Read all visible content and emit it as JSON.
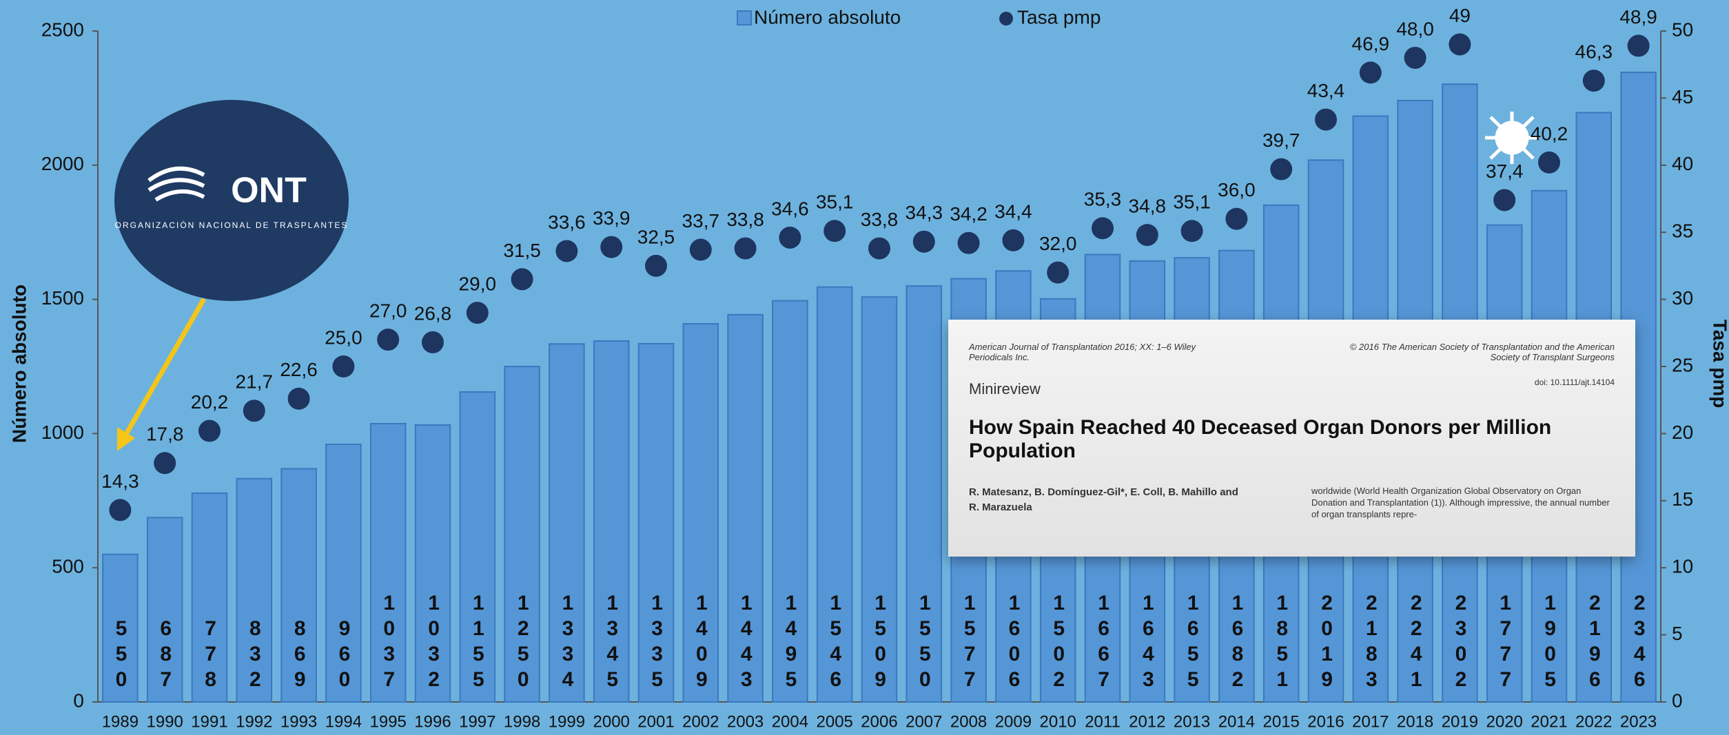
{
  "chart_data": {
    "type": "bar_scatter",
    "categories": [
      "1989",
      "1990",
      "1991",
      "1992",
      "1993",
      "1994",
      "1995",
      "1996",
      "1997",
      "1998",
      "1999",
      "2000",
      "2001",
      "2002",
      "2003",
      "2004",
      "2005",
      "2006",
      "2007",
      "2008",
      "2009",
      "2010",
      "2011",
      "2012",
      "2013",
      "2014",
      "2015",
      "2016",
      "2017",
      "2018",
      "2019",
      "2020",
      "2021",
      "2022",
      "2023"
    ],
    "series": [
      {
        "name": "Número absoluto",
        "color": "#5596d6",
        "values": [
          550,
          687,
          778,
          832,
          869,
          960,
          1037,
          1032,
          1155,
          1250,
          1334,
          1345,
          1335,
          1409,
          1443,
          1495,
          1546,
          1509,
          1550,
          1577,
          1606,
          1502,
          1667,
          1643,
          1655,
          1682,
          1851,
          2019,
          2183,
          2241,
          2302,
          1777,
          1905,
          2196,
          2346
        ]
      },
      {
        "name": "Tasa pmp",
        "color": "#1e3560",
        "axis": "y2",
        "values": [
          14.3,
          17.8,
          20.2,
          21.7,
          22.6,
          25.0,
          27.0,
          26.8,
          29.0,
          31.5,
          33.6,
          33.9,
          32.5,
          33.7,
          33.8,
          34.6,
          35.1,
          33.8,
          34.3,
          34.2,
          34.4,
          32.0,
          35.3,
          34.8,
          35.1,
          36.0,
          39.7,
          43.4,
          46.9,
          48.0,
          49,
          37.4,
          40.2,
          46.3,
          48.9
        ],
        "value_labels": [
          "14,3",
          "17,8",
          "20,2",
          "21,7",
          "22,6",
          "25,0",
          "27,0",
          "26,8",
          "29,0",
          "31,5",
          "33,6",
          "33,9",
          "32,5",
          "33,7",
          "33,8",
          "34,6",
          "35,1",
          "33,8",
          "34,3",
          "34,2",
          "34,4",
          "32,0",
          "35,3",
          "34,8",
          "35,1",
          "36,0",
          "39,7",
          "43,4",
          "46,9",
          "48,0",
          "49",
          "37,4",
          "40,2",
          "46,3",
          "48,9"
        ]
      }
    ],
    "y_label": "Número absoluto",
    "y2_label": "Tasa pmp",
    "ylim": [
      0,
      2500
    ],
    "yticks": [
      0,
      500,
      1000,
      1500,
      2000,
      2500
    ],
    "y2lim": [
      0,
      50
    ],
    "y2ticks": [
      0,
      5,
      10,
      15,
      20,
      25,
      30,
      35,
      40,
      45,
      50
    ],
    "grid": false,
    "legend": "top"
  },
  "logo": {
    "name": "ONT",
    "subtitle": "ORGANIZACIÓN NACIONAL DE TRASPLANTES"
  },
  "article": {
    "journal": "American Journal of Transplantation 2016; XX: 1–6 Wiley Periodicals Inc.",
    "copyright": "© 2016 The American Society of Transplantation and the American Society of Transplant Surgeons",
    "doi": "doi: 10.1111/ajt.14104",
    "section": "Minireview",
    "title": "How Spain Reached 40 Deceased Organ Donors per Million Population",
    "authors": "R. Matesanz, B. Domínguez-Gil*, E. Coll, B. Mahillo and R. Marazuela",
    "excerpt": "worldwide (World Health Organization Global Observatory on Organ Donation and Transplantation (1)). Although impressive, the annual number of organ transplants repre-"
  }
}
